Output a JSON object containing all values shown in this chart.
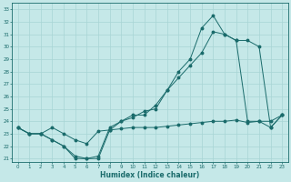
{
  "xlabel": "Humidex (Indice chaleur)",
  "bg_color": "#c5e8e8",
  "grid_color": "#a8d5d5",
  "line_color": "#1a6b6b",
  "xlim": [
    -0.5,
    23.5
  ],
  "ylim": [
    20.7,
    33.5
  ],
  "yticks": [
    21,
    22,
    23,
    24,
    25,
    26,
    27,
    28,
    29,
    30,
    31,
    32,
    33
  ],
  "xticks": [
    0,
    1,
    2,
    3,
    4,
    5,
    6,
    7,
    8,
    9,
    10,
    11,
    12,
    13,
    14,
    15,
    16,
    17,
    18,
    19,
    20,
    21,
    22,
    23
  ],
  "line1_x": [
    0,
    1,
    2,
    3,
    4,
    5,
    6,
    7,
    8,
    9,
    10,
    11,
    12,
    13,
    14,
    15,
    16,
    17,
    18,
    19,
    20,
    21,
    22,
    23
  ],
  "line1_y": [
    23.5,
    23.0,
    23.0,
    23.5,
    23.0,
    22.5,
    22.2,
    23.2,
    23.3,
    23.4,
    23.5,
    23.5,
    23.5,
    23.6,
    23.7,
    23.8,
    23.9,
    24.0,
    24.0,
    24.1,
    23.9,
    24.0,
    24.0,
    24.5
  ],
  "line2_x": [
    0,
    1,
    2,
    3,
    4,
    5,
    6,
    7,
    8,
    9,
    10,
    11,
    12,
    13,
    14,
    15,
    16,
    17,
    18,
    19,
    20,
    21,
    22,
    23
  ],
  "line2_y": [
    23.5,
    23.0,
    23.0,
    22.5,
    22.0,
    21.2,
    21.0,
    21.2,
    23.5,
    24.0,
    24.3,
    24.8,
    25.0,
    26.5,
    28.0,
    29.0,
    31.5,
    32.5,
    31.0,
    30.5,
    30.5,
    30.0,
    23.5,
    24.5
  ],
  "line3_x": [
    0,
    1,
    2,
    3,
    4,
    5,
    6,
    7,
    8,
    9,
    10,
    11,
    12,
    13,
    14,
    15,
    16,
    17,
    18,
    19,
    20,
    21,
    22,
    23
  ],
  "line3_y": [
    23.5,
    23.0,
    23.0,
    22.5,
    22.0,
    21.0,
    21.0,
    21.0,
    23.3,
    24.0,
    24.5,
    24.5,
    25.3,
    26.5,
    27.5,
    28.5,
    29.5,
    31.2,
    31.0,
    30.5,
    24.0,
    24.0,
    23.5,
    24.5
  ]
}
